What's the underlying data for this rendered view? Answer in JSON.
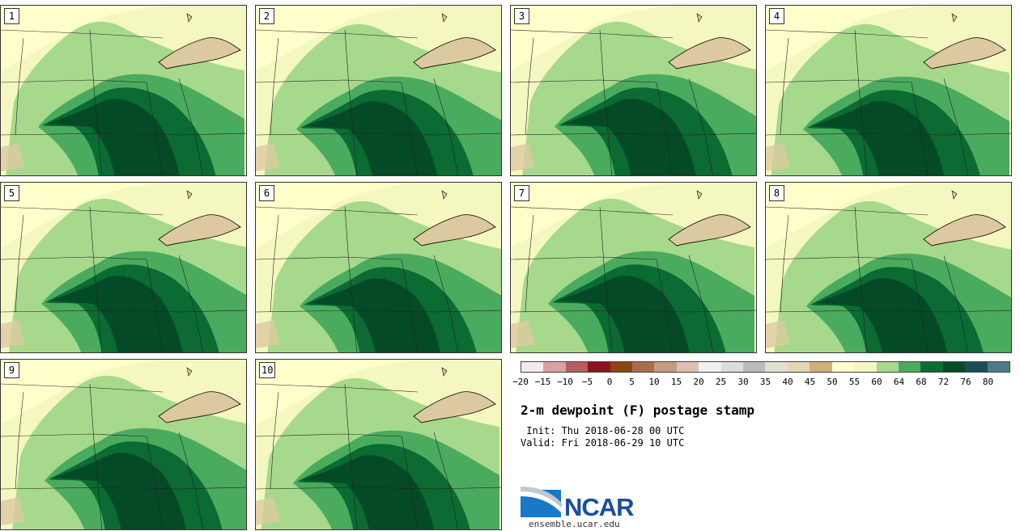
{
  "panels": [
    {
      "label": "1"
    },
    {
      "label": "2"
    },
    {
      "label": "3"
    },
    {
      "label": "4"
    },
    {
      "label": "5"
    },
    {
      "label": "6"
    },
    {
      "label": "7"
    },
    {
      "label": "8"
    },
    {
      "label": "9"
    },
    {
      "label": "10"
    }
  ],
  "colorbar": {
    "colors": [
      "#f5e9ec",
      "#d9a0a5",
      "#b55d62",
      "#8a1420",
      "#8a4510",
      "#a86e4a",
      "#c49a80",
      "#dcc0b4",
      "#f0f0f0",
      "#dcdcdc",
      "#bcbcbc",
      "#e0e0d0",
      "#e4d6b0",
      "#cfb27a",
      "#ffffcc",
      "#f4f8c0",
      "#a6d98c",
      "#4aab5e",
      "#0b6b33",
      "#054a26",
      "#1a4e5a",
      "#4e7a85"
    ],
    "ticks": [
      "−20",
      "−15",
      "−10",
      "−5",
      "0",
      "5",
      "10",
      "15",
      "20",
      "25",
      "30",
      "35",
      "40",
      "45",
      "50",
      "55",
      "60",
      "64",
      "68",
      "72",
      "76",
      "80"
    ]
  },
  "title": "2-m dewpoint (F) postage stamp",
  "init": " Init: Thu 2018-06-28 00 UTC",
  "valid": "Valid: Fri 2018-06-29 10 UTC",
  "logo": {
    "text": "NCAR",
    "url": "ensemble.ucar.edu"
  },
  "colors": {
    "low": "#ffffcc",
    "light": "#f4f8c0",
    "g60": "#a6d98c",
    "g64": "#4aab5e",
    "g68": "#0b6b33",
    "g72": "#054a26",
    "tan": "#dcc9a0",
    "border": "#333333"
  }
}
